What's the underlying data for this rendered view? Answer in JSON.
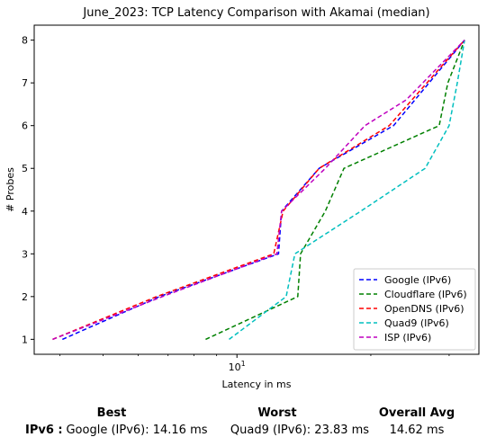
{
  "chart_data": {
    "type": "line",
    "title": "June_2023: TCP Latency Comparison with Akamai (median)",
    "xlabel": "Latency in ms",
    "ylabel": "# Probes",
    "xscale": "log",
    "xlim": [
      3.5,
      35
    ],
    "ylim": [
      0.65,
      8.35
    ],
    "xticks": [
      10
    ],
    "xtick_labels": [
      "10^1"
    ],
    "yticks": [
      1,
      2,
      3,
      4,
      5,
      6,
      7,
      8
    ],
    "grid": false,
    "legend_position": "lower-right",
    "series": [
      {
        "name": "Google (IPv6)",
        "color": "#0000ff",
        "x": [
          4.05,
          6.7,
          12.4,
          12.6,
          15.3,
          22.5,
          32.5
        ],
        "y": [
          1,
          2,
          3,
          4,
          5,
          6,
          8
        ]
      },
      {
        "name": "Cloudflare (IPv6)",
        "color": "#008000",
        "x": [
          8.5,
          13.7,
          13.9,
          15.8,
          17.4,
          28.5,
          29.8,
          32.5
        ],
        "y": [
          1,
          2,
          3,
          4,
          5,
          6,
          7,
          8
        ]
      },
      {
        "name": "OpenDNS (IPv6)",
        "color": "#ff0000",
        "x": [
          3.85,
          6.6,
          12.1,
          12.7,
          15.3,
          22.0,
          32.5
        ],
        "y": [
          1,
          2,
          3,
          4,
          5,
          6,
          8
        ]
      },
      {
        "name": "Quad9 (IPv6)",
        "color": "#00bfbf",
        "x": [
          9.6,
          12.9,
          13.5,
          19.0,
          26.5,
          30.0,
          31.3,
          32.5
        ],
        "y": [
          1,
          2,
          3,
          4,
          5,
          6,
          7,
          8
        ]
      },
      {
        "name": "ISP (IPv6)",
        "color": "#bf00bf",
        "x": [
          3.85,
          6.8,
          12.3,
          12.6,
          15.8,
          19.4,
          24.0,
          32.5
        ],
        "y": [
          1,
          2,
          3,
          4,
          5,
          6,
          6.6,
          8
        ]
      }
    ]
  },
  "summary": {
    "row_label": "IPv6 :",
    "best": {
      "header": "Best",
      "value": "Google (IPv6): 14.16 ms"
    },
    "worst": {
      "header": "Worst",
      "value": "Quad9 (IPv6): 23.83 ms"
    },
    "avg": {
      "header": "Overall Avg",
      "value": "14.62 ms"
    }
  }
}
